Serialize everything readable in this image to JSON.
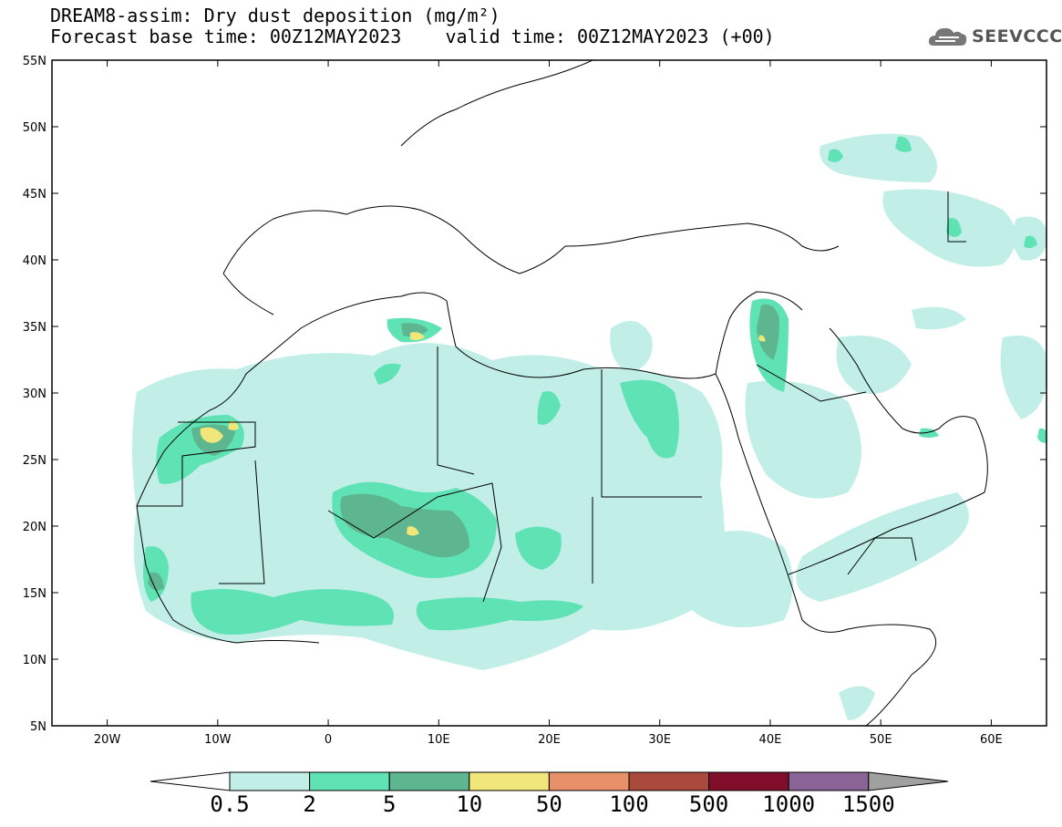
{
  "header": {
    "title_line1": "DREAM8-assim: Dry dust deposition (mg/m²)",
    "title_line2": "Forecast base time: 00Z12MAY2023    valid time: 00Z12MAY2023 (+00)"
  },
  "logo": {
    "text": "SEEVCCC",
    "icon": "cloud-icon"
  },
  "map": {
    "lon_range": [
      -25,
      65
    ],
    "lat_range": [
      5,
      55
    ],
    "lat_labels": [
      "55N",
      "50N",
      "45N",
      "40N",
      "35N",
      "30N",
      "25N",
      "20N",
      "15N",
      "10N",
      "5N"
    ],
    "lon_labels": [
      "20W",
      "10W",
      "0",
      "10E",
      "20E",
      "30E",
      "40E",
      "50E",
      "60E"
    ]
  },
  "colorbar": {
    "labels": [
      "0.5",
      "2",
      "5",
      "10",
      "50",
      "100",
      "500",
      "1000",
      "1500"
    ],
    "colors": [
      "#c1efe8",
      "#5fe2b4",
      "#5db68f",
      "#f1e679",
      "#e89068",
      "#aa4a3d",
      "#800e2b",
      "#8a6397",
      "#a0a0a0"
    ]
  }
}
